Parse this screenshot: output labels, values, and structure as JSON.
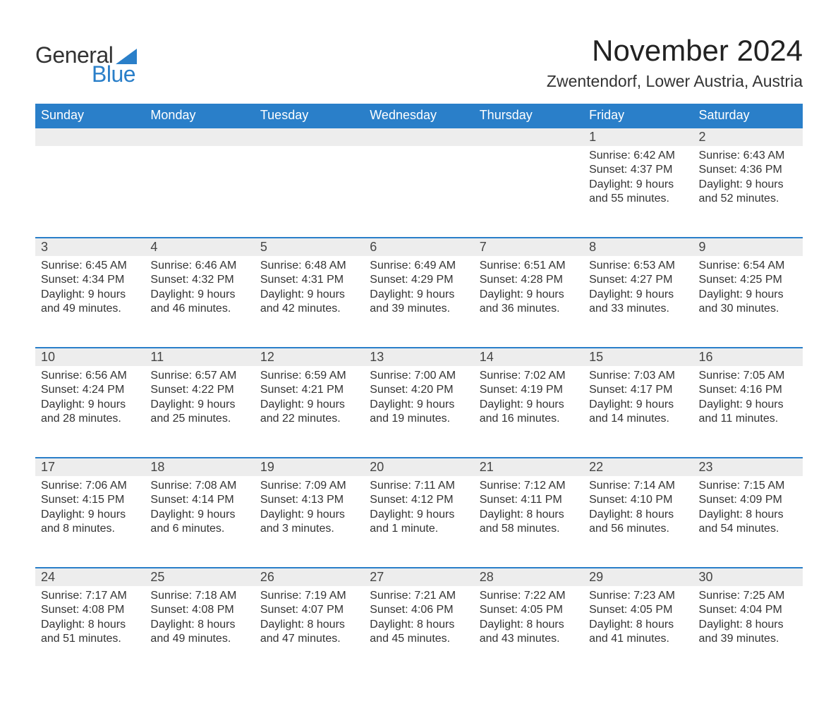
{
  "brand": {
    "word1": "General",
    "word2": "Blue"
  },
  "title": "November 2024",
  "location": "Zwentendorf, Lower Austria, Austria",
  "colors": {
    "header_bg": "#2a7fc9",
    "header_text": "#ffffff",
    "daynum_bg": "#ededed",
    "daynum_border": "#2a7fc9",
    "body_bg": "#ffffff",
    "text": "#333333",
    "logo_accent": "#2a7fc9"
  },
  "typography": {
    "title_fontsize": 42,
    "location_fontsize": 23,
    "header_fontsize": 18,
    "daynum_fontsize": 18,
    "cell_fontsize": 16,
    "font_family": "Arial"
  },
  "layout": {
    "columns": 7,
    "rows": 5,
    "first_day_column": 5,
    "days_in_month": 30
  },
  "weekdays": [
    "Sunday",
    "Monday",
    "Tuesday",
    "Wednesday",
    "Thursday",
    "Friday",
    "Saturday"
  ],
  "weeks": [
    [
      null,
      null,
      null,
      null,
      null,
      {
        "n": "1",
        "sr": "Sunrise: 6:42 AM",
        "ss": "Sunset: 4:37 PM",
        "d1": "Daylight: 9 hours",
        "d2": "and 55 minutes."
      },
      {
        "n": "2",
        "sr": "Sunrise: 6:43 AM",
        "ss": "Sunset: 4:36 PM",
        "d1": "Daylight: 9 hours",
        "d2": "and 52 minutes."
      }
    ],
    [
      {
        "n": "3",
        "sr": "Sunrise: 6:45 AM",
        "ss": "Sunset: 4:34 PM",
        "d1": "Daylight: 9 hours",
        "d2": "and 49 minutes."
      },
      {
        "n": "4",
        "sr": "Sunrise: 6:46 AM",
        "ss": "Sunset: 4:32 PM",
        "d1": "Daylight: 9 hours",
        "d2": "and 46 minutes."
      },
      {
        "n": "5",
        "sr": "Sunrise: 6:48 AM",
        "ss": "Sunset: 4:31 PM",
        "d1": "Daylight: 9 hours",
        "d2": "and 42 minutes."
      },
      {
        "n": "6",
        "sr": "Sunrise: 6:49 AM",
        "ss": "Sunset: 4:29 PM",
        "d1": "Daylight: 9 hours",
        "d2": "and 39 minutes."
      },
      {
        "n": "7",
        "sr": "Sunrise: 6:51 AM",
        "ss": "Sunset: 4:28 PM",
        "d1": "Daylight: 9 hours",
        "d2": "and 36 minutes."
      },
      {
        "n": "8",
        "sr": "Sunrise: 6:53 AM",
        "ss": "Sunset: 4:27 PM",
        "d1": "Daylight: 9 hours",
        "d2": "and 33 minutes."
      },
      {
        "n": "9",
        "sr": "Sunrise: 6:54 AM",
        "ss": "Sunset: 4:25 PM",
        "d1": "Daylight: 9 hours",
        "d2": "and 30 minutes."
      }
    ],
    [
      {
        "n": "10",
        "sr": "Sunrise: 6:56 AM",
        "ss": "Sunset: 4:24 PM",
        "d1": "Daylight: 9 hours",
        "d2": "and 28 minutes."
      },
      {
        "n": "11",
        "sr": "Sunrise: 6:57 AM",
        "ss": "Sunset: 4:22 PM",
        "d1": "Daylight: 9 hours",
        "d2": "and 25 minutes."
      },
      {
        "n": "12",
        "sr": "Sunrise: 6:59 AM",
        "ss": "Sunset: 4:21 PM",
        "d1": "Daylight: 9 hours",
        "d2": "and 22 minutes."
      },
      {
        "n": "13",
        "sr": "Sunrise: 7:00 AM",
        "ss": "Sunset: 4:20 PM",
        "d1": "Daylight: 9 hours",
        "d2": "and 19 minutes."
      },
      {
        "n": "14",
        "sr": "Sunrise: 7:02 AM",
        "ss": "Sunset: 4:19 PM",
        "d1": "Daylight: 9 hours",
        "d2": "and 16 minutes."
      },
      {
        "n": "15",
        "sr": "Sunrise: 7:03 AM",
        "ss": "Sunset: 4:17 PM",
        "d1": "Daylight: 9 hours",
        "d2": "and 14 minutes."
      },
      {
        "n": "16",
        "sr": "Sunrise: 7:05 AM",
        "ss": "Sunset: 4:16 PM",
        "d1": "Daylight: 9 hours",
        "d2": "and 11 minutes."
      }
    ],
    [
      {
        "n": "17",
        "sr": "Sunrise: 7:06 AM",
        "ss": "Sunset: 4:15 PM",
        "d1": "Daylight: 9 hours",
        "d2": "and 8 minutes."
      },
      {
        "n": "18",
        "sr": "Sunrise: 7:08 AM",
        "ss": "Sunset: 4:14 PM",
        "d1": "Daylight: 9 hours",
        "d2": "and 6 minutes."
      },
      {
        "n": "19",
        "sr": "Sunrise: 7:09 AM",
        "ss": "Sunset: 4:13 PM",
        "d1": "Daylight: 9 hours",
        "d2": "and 3 minutes."
      },
      {
        "n": "20",
        "sr": "Sunrise: 7:11 AM",
        "ss": "Sunset: 4:12 PM",
        "d1": "Daylight: 9 hours",
        "d2": "and 1 minute."
      },
      {
        "n": "21",
        "sr": "Sunrise: 7:12 AM",
        "ss": "Sunset: 4:11 PM",
        "d1": "Daylight: 8 hours",
        "d2": "and 58 minutes."
      },
      {
        "n": "22",
        "sr": "Sunrise: 7:14 AM",
        "ss": "Sunset: 4:10 PM",
        "d1": "Daylight: 8 hours",
        "d2": "and 56 minutes."
      },
      {
        "n": "23",
        "sr": "Sunrise: 7:15 AM",
        "ss": "Sunset: 4:09 PM",
        "d1": "Daylight: 8 hours",
        "d2": "and 54 minutes."
      }
    ],
    [
      {
        "n": "24",
        "sr": "Sunrise: 7:17 AM",
        "ss": "Sunset: 4:08 PM",
        "d1": "Daylight: 8 hours",
        "d2": "and 51 minutes."
      },
      {
        "n": "25",
        "sr": "Sunrise: 7:18 AM",
        "ss": "Sunset: 4:08 PM",
        "d1": "Daylight: 8 hours",
        "d2": "and 49 minutes."
      },
      {
        "n": "26",
        "sr": "Sunrise: 7:19 AM",
        "ss": "Sunset: 4:07 PM",
        "d1": "Daylight: 8 hours",
        "d2": "and 47 minutes."
      },
      {
        "n": "27",
        "sr": "Sunrise: 7:21 AM",
        "ss": "Sunset: 4:06 PM",
        "d1": "Daylight: 8 hours",
        "d2": "and 45 minutes."
      },
      {
        "n": "28",
        "sr": "Sunrise: 7:22 AM",
        "ss": "Sunset: 4:05 PM",
        "d1": "Daylight: 8 hours",
        "d2": "and 43 minutes."
      },
      {
        "n": "29",
        "sr": "Sunrise: 7:23 AM",
        "ss": "Sunset: 4:05 PM",
        "d1": "Daylight: 8 hours",
        "d2": "and 41 minutes."
      },
      {
        "n": "30",
        "sr": "Sunrise: 7:25 AM",
        "ss": "Sunset: 4:04 PM",
        "d1": "Daylight: 8 hours",
        "d2": "and 39 minutes."
      }
    ]
  ]
}
